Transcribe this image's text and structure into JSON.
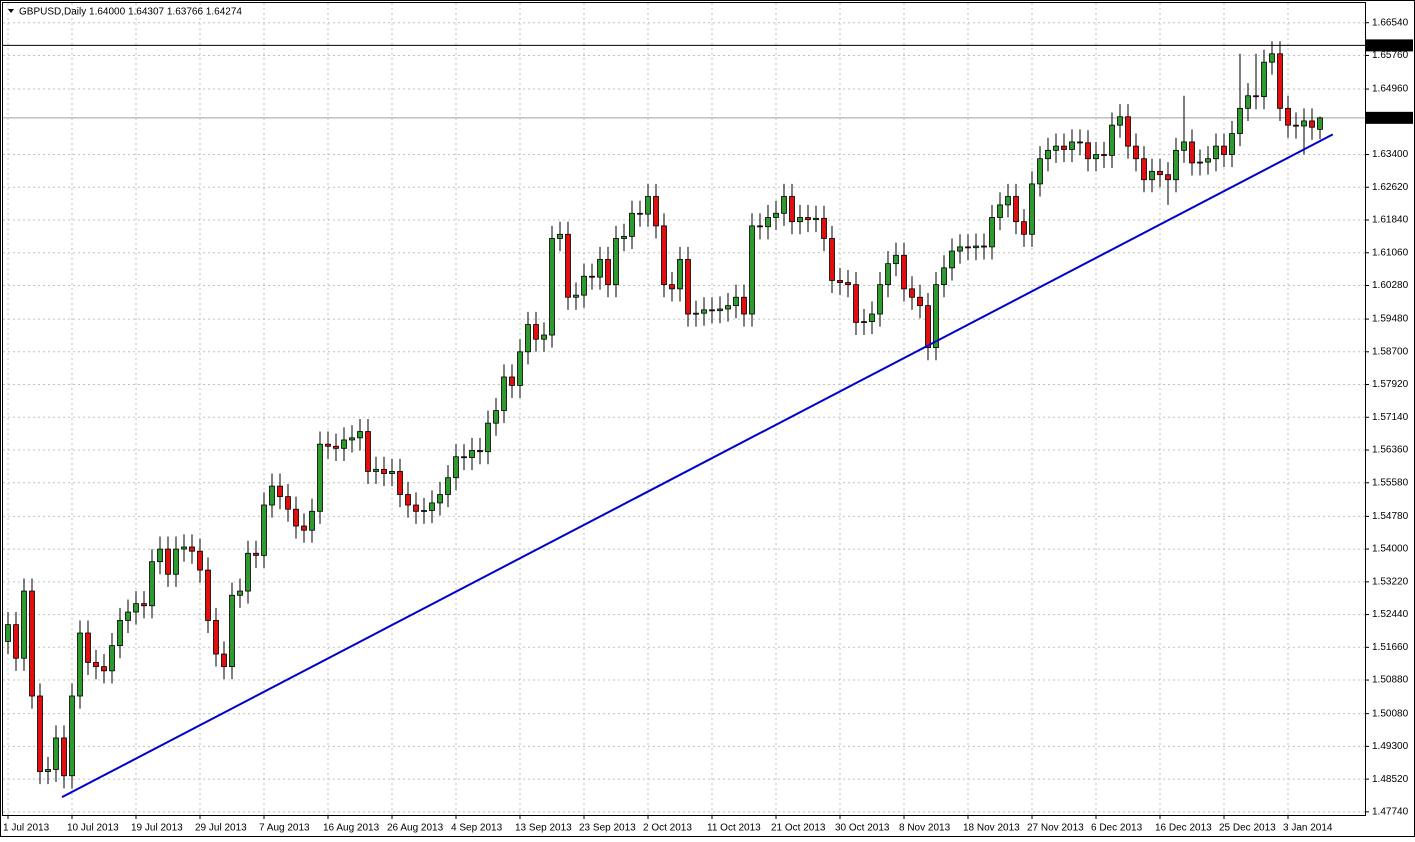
{
  "chart_data": {
    "type": "candlestick",
    "title": "GBPUSD,Daily  1.64000 1.64307 1.63766 1.64274",
    "up_color": "#2f9a2f",
    "down_color": "#e01010",
    "categories": [
      "1 Jul 2013",
      null,
      null,
      null,
      null,
      null,
      null,
      null,
      "10 Jul 2013",
      null,
      null,
      null,
      null,
      null,
      null,
      null,
      "19 Jul 2013",
      null,
      null,
      null,
      null,
      null,
      null,
      null,
      "29 Jul 2013",
      null,
      null,
      null,
      null,
      null,
      null,
      null,
      "7 Aug 2013",
      null,
      null,
      null,
      null,
      null,
      null,
      null,
      "16 Aug 2013",
      null,
      null,
      null,
      null,
      null,
      null,
      null,
      "26 Aug 2013",
      null,
      null,
      null,
      null,
      null,
      null,
      null,
      "4 Sep 2013",
      null,
      null,
      null,
      null,
      null,
      null,
      null,
      "13 Sep 2013",
      null,
      null,
      null,
      null,
      null,
      null,
      null,
      "23 Sep 2013",
      null,
      null,
      null,
      null,
      null,
      null,
      null,
      "2 Oct 2013",
      null,
      null,
      null,
      null,
      null,
      null,
      null,
      "11 Oct 2013",
      null,
      null,
      null,
      null,
      null,
      null,
      null,
      "21 Oct 2013",
      null,
      null,
      null,
      null,
      null,
      null,
      null,
      "30 Oct 2013",
      null,
      null,
      null,
      null,
      null,
      null,
      null,
      "8 Nov 2013",
      null,
      null,
      null,
      null,
      null,
      null,
      null,
      "18 Nov 2013",
      null,
      null,
      null,
      null,
      null,
      null,
      null,
      "27 Nov 2013",
      null,
      null,
      null,
      null,
      null,
      null,
      null,
      "6 Dec 2013",
      null,
      null,
      null,
      null,
      null,
      null,
      null,
      "16 Dec 2013",
      null,
      null,
      null,
      null,
      null,
      null,
      null,
      "25 Dec 2013",
      null,
      null,
      null,
      null,
      null,
      null,
      null,
      "3 Jan 2014",
      null,
      null,
      null,
      null
    ],
    "open": [
      1.518,
      1.522,
      1.514,
      1.53,
      1.505,
      1.487,
      1.4875,
      1.495,
      1.486,
      1.505,
      1.52,
      1.513,
      1.512,
      1.511,
      1.517,
      1.523,
      1.525,
      1.527,
      1.5265,
      1.537,
      1.54,
      1.534,
      1.54,
      1.5405,
      1.5395,
      1.535,
      1.523,
      1.515,
      1.512,
      1.529,
      1.53,
      1.539,
      1.5385,
      1.5505,
      1.555,
      1.5525,
      1.5495,
      1.5455,
      1.5445,
      1.549,
      1.565,
      1.5645,
      1.564,
      1.566,
      1.5665,
      1.568,
      1.5585,
      1.559,
      1.558,
      1.5585,
      1.553,
      1.5505,
      1.549,
      1.5492,
      1.551,
      1.553,
      1.557,
      1.562,
      1.5618,
      1.5635,
      1.5632,
      1.57,
      1.573,
      1.581,
      1.579,
      1.587,
      1.5935,
      1.59,
      1.591,
      1.614,
      1.615,
      1.6,
      1.6005,
      1.605,
      1.6048,
      1.609,
      1.603,
      1.614,
      1.6145,
      1.62,
      1.6198,
      1.624,
      1.617,
      1.603,
      1.602,
      1.609,
      1.596,
      1.5962,
      1.597,
      1.5968,
      1.5972,
      1.598,
      1.6,
      1.596,
      1.617,
      1.6168,
      1.619,
      1.62,
      1.624,
      1.618,
      1.619,
      1.6185,
      1.6188,
      1.614,
      1.604,
      1.6035,
      1.603,
      1.594,
      1.5942,
      1.596,
      1.603,
      1.608,
      1.61,
      1.602,
      1.6,
      1.598,
      1.588,
      1.603,
      1.607,
      1.611,
      1.612,
      1.6118,
      1.6122,
      1.612,
      1.619,
      1.622,
      1.624,
      1.618,
      1.615,
      1.627,
      1.633,
      1.635,
      1.636,
      1.6352,
      1.637,
      1.6368,
      1.633,
      1.634,
      1.6338,
      1.641,
      1.643,
      1.636,
      1.633,
      1.628,
      1.63,
      1.6292,
      1.628,
      1.635,
      1.637,
      1.632,
      1.6322,
      1.633,
      1.636,
      1.634,
      1.639,
      1.645,
      1.648,
      1.6478,
      1.656,
      1.658,
      1.645,
      1.641,
      1.6408,
      1.642,
      1.64
    ],
    "high": [
      1.525,
      1.525,
      1.533,
      1.533,
      1.508,
      1.4905,
      1.498,
      1.498,
      1.508,
      1.523,
      1.523,
      1.516,
      1.515,
      1.52,
      1.526,
      1.528,
      1.53,
      1.53,
      1.54,
      1.543,
      1.543,
      1.543,
      1.5435,
      1.5435,
      1.5425,
      1.538,
      1.526,
      1.518,
      1.532,
      1.533,
      1.542,
      1.542,
      1.5535,
      1.558,
      1.558,
      1.5555,
      1.5525,
      1.5485,
      1.552,
      1.568,
      1.568,
      1.5675,
      1.569,
      1.5695,
      1.571,
      1.571,
      1.562,
      1.562,
      1.5615,
      1.5615,
      1.556,
      1.5535,
      1.5522,
      1.554,
      1.556,
      1.56,
      1.565,
      1.565,
      1.5665,
      1.5665,
      1.573,
      1.576,
      1.584,
      1.584,
      1.59,
      1.5965,
      1.5965,
      1.594,
      1.617,
      1.618,
      1.618,
      1.6035,
      1.608,
      1.608,
      1.612,
      1.612,
      1.617,
      1.6175,
      1.623,
      1.623,
      1.627,
      1.627,
      1.62,
      1.606,
      1.612,
      1.612,
      1.5992,
      1.6,
      1.6,
      1.6002,
      1.601,
      1.603,
      1.603,
      1.62,
      1.62,
      1.622,
      1.623,
      1.627,
      1.627,
      1.622,
      1.622,
      1.6218,
      1.6218,
      1.617,
      1.607,
      1.6065,
      1.606,
      1.5972,
      1.599,
      1.606,
      1.611,
      1.613,
      1.613,
      1.605,
      1.603,
      1.601,
      1.606,
      1.61,
      1.614,
      1.615,
      1.615,
      1.6152,
      1.6152,
      1.622,
      1.625,
      1.627,
      1.627,
      1.621,
      1.63,
      1.636,
      1.638,
      1.639,
      1.639,
      1.64,
      1.64,
      1.6398,
      1.637,
      1.637,
      1.644,
      1.646,
      1.646,
      1.639,
      1.636,
      1.633,
      1.633,
      1.6322,
      1.638,
      1.648,
      1.64,
      1.6352,
      1.636,
      1.639,
      1.639,
      1.642,
      1.658,
      1.651,
      1.658,
      1.659,
      1.661,
      1.661,
      1.648,
      1.644,
      1.645,
      1.645,
      1.64307
    ],
    "low": [
      1.515,
      1.511,
      1.511,
      1.502,
      1.484,
      1.484,
      1.4845,
      1.483,
      1.483,
      1.502,
      1.51,
      1.509,
      1.508,
      1.508,
      1.514,
      1.52,
      1.522,
      1.5235,
      1.5235,
      1.534,
      1.531,
      1.531,
      1.537,
      1.5365,
      1.532,
      1.52,
      1.512,
      1.509,
      1.509,
      1.526,
      1.527,
      1.5355,
      1.5355,
      1.5475,
      1.5495,
      1.5465,
      1.5425,
      1.5415,
      1.5415,
      1.546,
      1.5615,
      1.561,
      1.561,
      1.563,
      1.5635,
      1.5555,
      1.5555,
      1.555,
      1.555,
      1.55,
      1.5475,
      1.546,
      1.546,
      1.5462,
      1.548,
      1.55,
      1.554,
      1.5588,
      1.5588,
      1.5602,
      1.5602,
      1.567,
      1.57,
      1.576,
      1.576,
      1.584,
      1.587,
      1.587,
      1.588,
      1.611,
      1.597,
      1.597,
      1.5975,
      1.6018,
      1.6018,
      1.6,
      1.6,
      1.611,
      1.6115,
      1.6168,
      1.6168,
      1.614,
      1.6,
      1.599,
      1.599,
      1.593,
      1.593,
      1.5932,
      1.5938,
      1.5938,
      1.5942,
      1.595,
      1.593,
      1.593,
      1.6138,
      1.6138,
      1.616,
      1.617,
      1.615,
      1.615,
      1.6155,
      1.6155,
      1.611,
      1.601,
      1.6005,
      1.6,
      1.591,
      1.591,
      1.5912,
      1.593,
      1.6,
      1.605,
      1.599,
      1.597,
      1.595,
      1.585,
      1.585,
      1.6,
      1.604,
      1.608,
      1.6088,
      1.6088,
      1.609,
      1.609,
      1.616,
      1.619,
      1.615,
      1.612,
      1.612,
      1.624,
      1.63,
      1.632,
      1.6322,
      1.6322,
      1.6338,
      1.63,
      1.63,
      1.6308,
      1.6308,
      1.638,
      1.633,
      1.63,
      1.625,
      1.625,
      1.6262,
      1.622,
      1.625,
      1.632,
      1.629,
      1.629,
      1.6292,
      1.63,
      1.631,
      1.631,
      1.636,
      1.642,
      1.6448,
      1.6448,
      1.653,
      1.642,
      1.638,
      1.6378,
      1.634,
      1.6375,
      1.63766
    ],
    "close": [
      1.522,
      1.514,
      1.53,
      1.505,
      1.487,
      1.4875,
      1.495,
      1.486,
      1.505,
      1.52,
      1.513,
      1.512,
      1.511,
      1.517,
      1.523,
      1.525,
      1.527,
      1.5265,
      1.537,
      1.54,
      1.534,
      1.54,
      1.5405,
      1.5395,
      1.535,
      1.523,
      1.515,
      1.512,
      1.529,
      1.53,
      1.539,
      1.5385,
      1.5505,
      1.555,
      1.5525,
      1.5495,
      1.5455,
      1.5445,
      1.549,
      1.565,
      1.5645,
      1.564,
      1.566,
      1.5665,
      1.568,
      1.5585,
      1.559,
      1.558,
      1.5585,
      1.553,
      1.5505,
      1.549,
      1.5492,
      1.551,
      1.553,
      1.557,
      1.562,
      1.5618,
      1.5635,
      1.5632,
      1.57,
      1.573,
      1.581,
      1.579,
      1.587,
      1.5935,
      1.59,
      1.591,
      1.614,
      1.615,
      1.6,
      1.6005,
      1.605,
      1.6048,
      1.609,
      1.603,
      1.614,
      1.6145,
      1.62,
      1.6198,
      1.624,
      1.617,
      1.603,
      1.602,
      1.609,
      1.596,
      1.5962,
      1.597,
      1.5968,
      1.5972,
      1.598,
      1.6,
      1.596,
      1.617,
      1.6168,
      1.619,
      1.62,
      1.624,
      1.618,
      1.619,
      1.6185,
      1.6188,
      1.614,
      1.604,
      1.6035,
      1.603,
      1.594,
      1.5942,
      1.596,
      1.603,
      1.608,
      1.61,
      1.602,
      1.6,
      1.598,
      1.588,
      1.603,
      1.607,
      1.611,
      1.612,
      1.6118,
      1.6122,
      1.612,
      1.619,
      1.622,
      1.624,
      1.618,
      1.615,
      1.627,
      1.633,
      1.635,
      1.636,
      1.6352,
      1.637,
      1.6368,
      1.633,
      1.634,
      1.6338,
      1.641,
      1.643,
      1.636,
      1.633,
      1.628,
      1.63,
      1.6292,
      1.628,
      1.635,
      1.637,
      1.632,
      1.6322,
      1.633,
      1.636,
      1.634,
      1.639,
      1.645,
      1.648,
      1.6478,
      1.656,
      1.658,
      1.645,
      1.641,
      1.6408,
      1.642,
      1.6405,
      1.64274
    ],
    "ylim": [
      1.47665,
      1.6701
    ],
    "yticks": [
      {
        "value": 1.6654,
        "label": "1.66540"
      },
      {
        "value": 1.6576,
        "label": "1.65760"
      },
      {
        "value": 1.6496,
        "label": "1.64960"
      },
      {
        "value": 1.634,
        "label": "1.63400"
      },
      {
        "value": 1.6262,
        "label": "1.62620"
      },
      {
        "value": 1.6184,
        "label": "1.61840"
      },
      {
        "value": 1.6106,
        "label": "1.61060"
      },
      {
        "value": 1.6028,
        "label": "1.60280"
      },
      {
        "value": 1.5948,
        "label": "1.59480"
      },
      {
        "value": 1.587,
        "label": "1.58700"
      },
      {
        "value": 1.5792,
        "label": "1.57920"
      },
      {
        "value": 1.5714,
        "label": "1.57140"
      },
      {
        "value": 1.5636,
        "label": "1.56360"
      },
      {
        "value": 1.5558,
        "label": "1.55580"
      },
      {
        "value": 1.5478,
        "label": "1.54780"
      },
      {
        "value": 1.54,
        "label": "1.54000"
      },
      {
        "value": 1.5322,
        "label": "1.53220"
      },
      {
        "value": 1.5244,
        "label": "1.52440"
      },
      {
        "value": 1.5166,
        "label": "1.51660"
      },
      {
        "value": 1.5088,
        "label": "1.50880"
      },
      {
        "value": 1.5008,
        "label": "1.50080"
      },
      {
        "value": 1.493,
        "label": "1.49300"
      },
      {
        "value": 1.4852,
        "label": "1.48520"
      },
      {
        "value": 1.4774,
        "label": "1.47740"
      }
    ],
    "grid": true,
    "hline": {
      "value": 1.66,
      "label": "1.66000",
      "color": "#000000"
    },
    "price_line": {
      "value": 1.64274,
      "label": "1.64274",
      "color": "#a0a0a0"
    },
    "trendline": {
      "x": [
        6.75,
        165.6
      ],
      "y": [
        1.4809,
        1.6388
      ],
      "color": "#0000cc"
    }
  }
}
